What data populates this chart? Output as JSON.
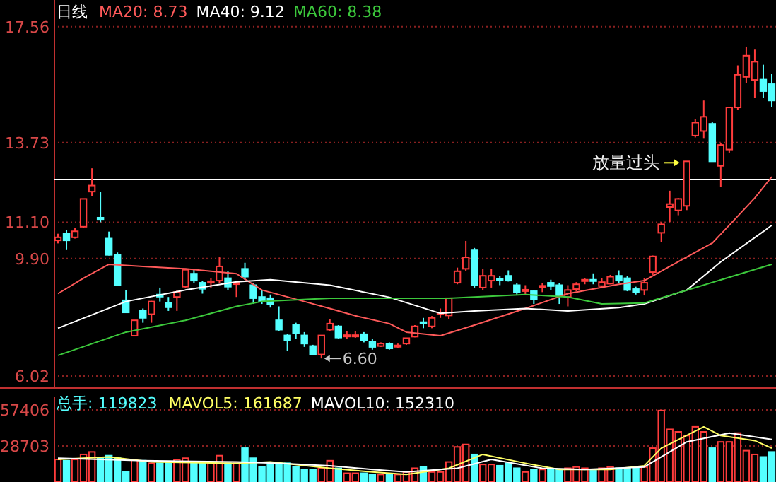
{
  "chart_data": [
    {
      "type": "candlestick",
      "title": "日线",
      "legend": "top left",
      "grid": "y",
      "categories": [
        null,
        null,
        null,
        null,
        null,
        null,
        null,
        null,
        null,
        null,
        null,
        null,
        null,
        null,
        null,
        null,
        null,
        null,
        null,
        null,
        null,
        null,
        null,
        null,
        null,
        null,
        null,
        null,
        null,
        null,
        null,
        null,
        null,
        null,
        null,
        null,
        null,
        null,
        null,
        null,
        null,
        null,
        null,
        null,
        null,
        null,
        null,
        null,
        null,
        null,
        null,
        null,
        null,
        null,
        null,
        null,
        null,
        null,
        null,
        null,
        null,
        null,
        null,
        null,
        null,
        null,
        null,
        null,
        null,
        null,
        null,
        null,
        null,
        null,
        null,
        null,
        null,
        null,
        null,
        null,
        null,
        null,
        null,
        null,
        null
      ],
      "ylim": [
        6.02,
        18.44
      ],
      "yticks": [
        6.02,
        {
          "value": 9.9,
          "label": "9.90"
        },
        {
          "value": 11.1,
          "label": "11.10"
        },
        13.73,
        17.56
      ],
      "ohlc": [
        [
          10.5,
          10.72,
          10.4,
          10.6
        ],
        [
          10.72,
          10.85,
          10.18,
          10.5
        ],
        [
          10.6,
          10.9,
          10.56,
          10.8
        ],
        [
          10.95,
          11.87,
          10.9,
          11.87
        ],
        [
          12.11,
          12.88,
          11.95,
          12.31
        ],
        [
          11.25,
          12.11,
          11.1,
          11.2
        ],
        [
          10.56,
          10.79,
          10.0,
          10.02
        ],
        [
          10.02,
          10.1,
          9.0,
          9.02
        ],
        [
          8.52,
          8.86,
          8.1,
          8.12
        ],
        [
          7.35,
          7.86,
          7.33,
          7.86
        ],
        [
          8.17,
          8.25,
          7.78,
          7.94
        ],
        [
          8.06,
          8.5,
          7.78,
          8.48
        ],
        [
          8.71,
          8.94,
          8.48,
          8.64
        ],
        [
          8.43,
          8.63,
          8.17,
          8.29
        ],
        [
          8.63,
          8.86,
          8.17,
          8.79
        ],
        [
          8.97,
          9.56,
          8.94,
          9.53
        ],
        [
          9.4,
          9.56,
          9.1,
          9.17
        ],
        [
          9.1,
          9.17,
          8.74,
          8.9
        ],
        [
          9.1,
          9.25,
          8.94,
          9.15
        ],
        [
          9.17,
          9.94,
          9.1,
          9.64
        ],
        [
          9.25,
          9.48,
          8.86,
          8.97
        ],
        [
          9.07,
          9.15,
          8.63,
          9.1
        ],
        [
          9.56,
          9.76,
          9.2,
          9.3
        ],
        [
          9.02,
          9.1,
          8.4,
          8.59
        ],
        [
          8.63,
          8.86,
          8.4,
          8.48
        ],
        [
          8.59,
          8.71,
          8.28,
          8.4
        ],
        [
          7.86,
          8.32,
          7.5,
          7.55
        ],
        [
          7.36,
          7.4,
          6.86,
          7.2
        ],
        [
          7.7,
          7.78,
          7.24,
          7.44
        ],
        [
          7.36,
          7.47,
          6.98,
          7.09
        ],
        [
          7.01,
          7.05,
          6.7,
          6.73
        ],
        [
          6.73,
          7.36,
          6.6,
          7.36
        ],
        [
          7.55,
          7.9,
          7.5,
          7.75
        ],
        [
          7.66,
          7.7,
          7.26,
          7.29
        ],
        [
          7.34,
          7.5,
          7.24,
          7.37
        ],
        [
          7.34,
          7.5,
          7.28,
          7.37
        ],
        [
          7.4,
          7.47,
          7.13,
          7.2
        ],
        [
          7.16,
          7.24,
          6.89,
          6.98
        ],
        [
          7.01,
          7.13,
          6.98,
          7.09
        ],
        [
          7.09,
          7.13,
          6.89,
          6.93
        ],
        [
          7.01,
          7.09,
          6.95,
          7.03
        ],
        [
          7.09,
          7.28,
          7.05,
          7.27
        ],
        [
          7.32,
          7.7,
          7.3,
          7.66
        ],
        [
          7.8,
          7.94,
          7.6,
          7.77
        ],
        [
          7.66,
          8.0,
          7.6,
          7.94
        ],
        [
          8.06,
          8.25,
          7.94,
          8.1
        ],
        [
          8.02,
          8.6,
          7.9,
          8.59
        ],
        [
          9.1,
          9.6,
          9.05,
          9.48
        ],
        [
          9.56,
          10.48,
          9.48,
          9.94
        ],
        [
          10.17,
          10.25,
          8.94,
          9.02
        ],
        [
          8.94,
          9.56,
          8.86,
          9.33
        ],
        [
          9.17,
          9.56,
          8.94,
          9.33
        ],
        [
          9.22,
          9.33,
          9.02,
          9.2
        ],
        [
          9.33,
          9.51,
          9.14,
          9.17
        ],
        [
          9.02,
          9.1,
          8.71,
          8.79
        ],
        [
          8.86,
          9.02,
          8.71,
          8.87
        ],
        [
          8.82,
          8.86,
          8.4,
          8.56
        ],
        [
          8.97,
          9.1,
          8.79,
          9.0
        ],
        [
          9.1,
          9.2,
          8.86,
          8.99
        ],
        [
          9.02,
          9.1,
          8.4,
          8.68
        ],
        [
          8.63,
          9.02,
          8.32,
          8.86
        ],
        [
          8.89,
          9.12,
          8.82,
          9.05
        ],
        [
          9.17,
          9.25,
          9.05,
          9.2
        ],
        [
          9.2,
          9.41,
          9.05,
          9.17
        ],
        [
          8.99,
          9.25,
          8.94,
          9.12
        ],
        [
          9.07,
          9.36,
          9.05,
          9.3
        ],
        [
          9.33,
          9.51,
          9.1,
          9.17
        ],
        [
          9.25,
          9.33,
          8.82,
          8.86
        ],
        [
          8.89,
          8.97,
          8.71,
          8.79
        ],
        [
          8.86,
          9.25,
          8.68,
          9.1
        ],
        [
          9.45,
          10.0,
          9.36,
          9.97
        ],
        [
          10.75,
          11.1,
          10.44,
          11.03
        ],
        [
          11.6,
          12.14,
          11.1,
          11.7
        ],
        [
          11.49,
          11.9,
          11.33,
          11.87
        ],
        [
          11.64,
          13.11,
          11.5,
          13.11
        ],
        [
          13.96,
          14.5,
          13.9,
          14.39
        ],
        [
          14.11,
          15.12,
          13.88,
          14.58
        ],
        [
          14.35,
          14.4,
          13.1,
          13.11
        ],
        [
          12.96,
          13.7,
          12.26,
          13.65
        ],
        [
          13.5,
          14.9,
          13.4,
          14.89
        ],
        [
          14.89,
          16.28,
          14.8,
          15.97
        ],
        [
          15.9,
          16.9,
          15.7,
          16.6
        ],
        [
          15.8,
          16.8,
          15.2,
          16.4
        ],
        [
          15.81,
          16.3,
          15.2,
          15.43
        ],
        [
          15.66,
          16.0,
          14.9,
          15.12
        ]
      ],
      "colors": [
        "#ff3c3c",
        "#54ffff",
        "#ff3c3c",
        "#ff3c3c",
        "#ff3c3c",
        "#54ffff",
        "#54ffff",
        "#54ffff",
        "#54ffff",
        "#ff3c3c",
        "#54ffff",
        "#ff3c3c",
        "#54ffff",
        "#54ffff",
        "#ff3c3c",
        "#ff3c3c",
        "#54ffff",
        "#54ffff",
        "#ff3c3c",
        "#ff3c3c",
        "#54ffff",
        "#ff3c3c",
        "#54ffff",
        "#54ffff",
        "#54ffff",
        "#54ffff",
        "#54ffff",
        "#54ffff",
        "#54ffff",
        "#54ffff",
        "#54ffff",
        "#ff3c3c",
        "#ff3c3c",
        "#54ffff",
        "#ff3c3c",
        "#ff3c3c",
        "#54ffff",
        "#54ffff",
        "#ff3c3c",
        "#54ffff",
        "#ff3c3c",
        "#ff3c3c",
        "#ff3c3c",
        "#54ffff",
        "#ff3c3c",
        "#ff3c3c",
        "#ff3c3c",
        "#ff3c3c",
        "#ff3c3c",
        "#54ffff",
        "#ff3c3c",
        "#ff3c3c",
        "#54ffff",
        "#54ffff",
        "#54ffff",
        "#ff3c3c",
        "#54ffff",
        "#ff3c3c",
        "#54ffff",
        "#54ffff",
        "#ff3c3c",
        "#ff3c3c",
        "#ff3c3c",
        "#54ffff",
        "#ff3c3c",
        "#ff3c3c",
        "#54ffff",
        "#54ffff",
        "#54ffff",
        "#ff3c3c",
        "#ff3c3c",
        "#ff3c3c",
        "#ff3c3c",
        "#ff3c3c",
        "#ff3c3c",
        "#ff3c3c",
        "#ff3c3c",
        "#54ffff",
        "#ff3c3c",
        "#ff3c3c",
        "#ff3c3c",
        "#ff3c3c",
        "#ff3c3c",
        "#54ffff",
        "#54ffff"
      ],
      "series": [
        {
          "name": "MA20: 8.73",
          "type": "line",
          "color": "#ff5a5a",
          "values": [
            8.74,
            null,
            null,
            9.25,
            null,
            null,
            9.71,
            null,
            null,
            null,
            9.64,
            null,
            null,
            null,
            null,
            9.56,
            null,
            null,
            null,
            null,
            null,
            9.4,
            null,
            null,
            8.86,
            null,
            null,
            null,
            null,
            8.48,
            null,
            null,
            8.25,
            null,
            null,
            8.01,
            null,
            null,
            null,
            7.75,
            null,
            7.47,
            null,
            null,
            null,
            7.35,
            null,
            null,
            null,
            7.7,
            null,
            null,
            null,
            null,
            null,
            8.25,
            null,
            null,
            null,
            null,
            8.74,
            null,
            null,
            null,
            null,
            null,
            9.05,
            null,
            null,
            9.17,
            null,
            null,
            9.64,
            null,
            null,
            null,
            null,
            10.41,
            null,
            11.0,
            null,
            null,
            11.9,
            null,
            12.6
          ]
        },
        {
          "name": "MA40: 9.12",
          "type": "line",
          "color": "#ffffff",
          "values": [
            7.6,
            null,
            null,
            null,
            null,
            null,
            null,
            null,
            8.48,
            null,
            null,
            null,
            null,
            null,
            null,
            8.86,
            null,
            null,
            null,
            null,
            null,
            9.13,
            null,
            null,
            null,
            9.2,
            null,
            null,
            null,
            null,
            null,
            null,
            9.02,
            null,
            null,
            null,
            null,
            null,
            null,
            8.62,
            null,
            null,
            null,
            null,
            null,
            8.09,
            null,
            null,
            null,
            8.17,
            null,
            null,
            null,
            null,
            null,
            8.25,
            null,
            null,
            null,
            null,
            8.17,
            null,
            null,
            null,
            null,
            null,
            8.28,
            null,
            null,
            8.4,
            null,
            null,
            null,
            null,
            8.86,
            null,
            null,
            null,
            9.79,
            null,
            null,
            null,
            null,
            10.79,
            11.0
          ]
        },
        {
          "name": "MA60: 8.38",
          "type": "line",
          "color": "#3cc83c",
          "values": [
            6.7,
            null,
            null,
            null,
            null,
            null,
            null,
            null,
            7.47,
            null,
            null,
            null,
            null,
            null,
            null,
            7.86,
            null,
            null,
            null,
            null,
            null,
            8.32,
            null,
            null,
            8.48,
            null,
            null,
            null,
            null,
            null,
            null,
            null,
            8.59,
            null,
            null,
            null,
            null,
            null,
            null,
            8.59,
            null,
            null,
            null,
            null,
            null,
            null,
            8.59,
            null,
            null,
            null,
            null,
            null,
            null,
            null,
            null,
            8.71,
            null,
            null,
            null,
            null,
            8.63,
            null,
            null,
            null,
            8.4,
            null,
            null,
            null,
            null,
            8.43,
            null,
            null,
            null,
            null,
            null,
            8.94,
            null,
            null,
            null,
            null,
            null,
            null,
            null,
            null,
            9.71
          ]
        }
      ],
      "ref_lines": [
        {
          "axis": "y",
          "value": 12.51,
          "color": "#ffffff"
        }
      ],
      "annotations": [
        "放量过头",
        "6.60"
      ]
    },
    {
      "type": "bar",
      "title": "总手: 119823",
      "legend": "top left",
      "grid": "y",
      "categories": [
        null,
        null,
        null,
        null,
        null,
        null,
        null,
        null,
        null,
        null,
        null,
        null,
        null,
        null,
        null,
        null,
        null,
        null,
        null,
        null,
        null,
        null,
        null,
        null,
        null,
        null,
        null,
        null,
        null,
        null,
        null,
        null,
        null,
        null,
        null,
        null,
        null,
        null,
        null,
        null,
        null,
        null,
        null,
        null,
        null,
        null,
        null,
        null,
        null,
        null,
        null,
        null,
        null,
        null,
        null,
        null,
        null,
        null,
        null,
        null,
        null,
        null,
        null,
        null,
        null,
        null,
        null,
        null,
        null,
        null,
        null,
        null,
        null,
        null,
        null,
        null,
        null,
        null,
        null,
        null,
        null,
        null,
        null,
        null,
        null
      ],
      "ylim": [
        0,
        67600
      ],
      "yticks": [
        28703,
        57406
      ],
      "values": [
        18000,
        17000,
        18000,
        22000,
        24000,
        19000,
        21000,
        19000,
        8000,
        18000,
        17000,
        15000,
        15000,
        16000,
        18000,
        19000,
        16000,
        15000,
        15000,
        21000,
        15000,
        15000,
        27000,
        19000,
        12000,
        14000,
        15000,
        15000,
        12000,
        10000,
        10000,
        11000,
        17000,
        11000,
        7000,
        7000,
        7000,
        6000,
        6000,
        6000,
        6000,
        8000,
        11000,
        12000,
        8000,
        8000,
        16000,
        28000,
        30000,
        22000,
        14000,
        14000,
        13000,
        15000,
        11000,
        8000,
        10000,
        10000,
        10000,
        10000,
        11000,
        12000,
        11000,
        10000,
        11000,
        12000,
        11000,
        11000,
        11000,
        12000,
        27000,
        57000,
        42000,
        40000,
        37000,
        44000,
        40000,
        27000,
        32000,
        32000,
        39000,
        25000,
        22000,
        20000,
        24000
      ],
      "colors": [
        "#ff3c3c",
        "#54ffff",
        "#ff3c3c",
        "#ff3c3c",
        "#ff3c3c",
        "#54ffff",
        "#54ffff",
        "#54ffff",
        "#54ffff",
        "#ff3c3c",
        "#54ffff",
        "#ff3c3c",
        "#54ffff",
        "#54ffff",
        "#ff3c3c",
        "#ff3c3c",
        "#54ffff",
        "#54ffff",
        "#ff3c3c",
        "#ff3c3c",
        "#54ffff",
        "#ff3c3c",
        "#54ffff",
        "#54ffff",
        "#54ffff",
        "#54ffff",
        "#54ffff",
        "#54ffff",
        "#54ffff",
        "#54ffff",
        "#54ffff",
        "#ff3c3c",
        "#ff3c3c",
        "#54ffff",
        "#ff3c3c",
        "#ff3c3c",
        "#54ffff",
        "#54ffff",
        "#ff3c3c",
        "#54ffff",
        "#ff3c3c",
        "#ff3c3c",
        "#ff3c3c",
        "#54ffff",
        "#ff3c3c",
        "#ff3c3c",
        "#ff3c3c",
        "#ff3c3c",
        "#ff3c3c",
        "#54ffff",
        "#ff3c3c",
        "#ff3c3c",
        "#54ffff",
        "#54ffff",
        "#54ffff",
        "#ff3c3c",
        "#54ffff",
        "#ff3c3c",
        "#54ffff",
        "#54ffff",
        "#ff3c3c",
        "#ff3c3c",
        "#ff3c3c",
        "#54ffff",
        "#ff3c3c",
        "#ff3c3c",
        "#54ffff",
        "#54ffff",
        "#54ffff",
        "#ff3c3c",
        "#ff3c3c",
        "#ff3c3c",
        "#ff3c3c",
        "#ff3c3c",
        "#ff3c3c",
        "#ff3c3c",
        "#ff3c3c",
        "#54ffff",
        "#ff3c3c",
        "#ff3c3c",
        "#ff3c3c",
        "#ff3c3c",
        "#ff3c3c",
        "#54ffff",
        "#54ffff"
      ],
      "series": [
        {
          "name": "MAVOL5: 161687",
          "type": "line",
          "color": "#ffff64",
          "values": [
            18000,
            null,
            null,
            null,
            null,
            null,
            20000,
            null,
            null,
            null,
            null,
            16000,
            null,
            null,
            null,
            null,
            null,
            null,
            null,
            null,
            null,
            15000,
            null,
            null,
            null,
            16000,
            null,
            null,
            null,
            null,
            null,
            null,
            11000,
            null,
            null,
            null,
            null,
            8000,
            null,
            null,
            null,
            6000,
            null,
            null,
            null,
            null,
            11000,
            null,
            null,
            null,
            22000,
            null,
            null,
            null,
            null,
            15000,
            null,
            null,
            null,
            10000,
            null,
            null,
            null,
            null,
            null,
            10000,
            null,
            null,
            null,
            13000,
            null,
            27000,
            null,
            null,
            null,
            null,
            44000,
            null,
            37000,
            null,
            null,
            null,
            33000,
            null,
            27000
          ]
        },
        {
          "name": "MAVOL10: 152310",
          "type": "line",
          "color": "#ffffff",
          "values": [
            19000,
            null,
            null,
            null,
            null,
            null,
            null,
            null,
            null,
            null,
            17000,
            null,
            null,
            null,
            null,
            null,
            null,
            null,
            null,
            null,
            null,
            16000,
            null,
            null,
            null,
            null,
            15000,
            null,
            null,
            null,
            null,
            null,
            13000,
            null,
            null,
            null,
            null,
            10000,
            null,
            null,
            null,
            8000,
            null,
            null,
            null,
            null,
            null,
            11000,
            null,
            null,
            null,
            18000,
            null,
            null,
            null,
            null,
            null,
            11000,
            null,
            null,
            null,
            null,
            10000,
            null,
            null,
            null,
            null,
            null,
            null,
            12000,
            null,
            null,
            null,
            null,
            32000,
            null,
            null,
            null,
            null,
            39000,
            null,
            null,
            null,
            null,
            34000
          ]
        }
      ]
    }
  ]
}
